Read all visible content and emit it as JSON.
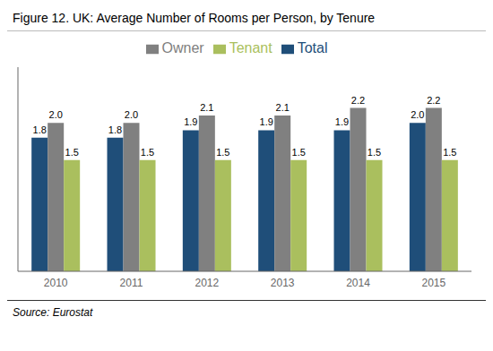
{
  "chart_data": {
    "type": "bar",
    "title": "Figure 12. UK: Average Number of Rooms per Person, by Tenure",
    "annotations": [
      "Source: Eurostat"
    ],
    "categories": [
      "2010",
      "2011",
      "2012",
      "2013",
      "2014",
      "2015"
    ],
    "series": [
      {
        "name": "Total",
        "color": "#1f4e79",
        "values": [
          1.8,
          1.8,
          1.9,
          1.9,
          1.9,
          2.0
        ],
        "value_labels": [
          "1.8",
          "1.8",
          "1.9",
          "1.9",
          "1.9",
          "2.0"
        ]
      },
      {
        "name": "Owner",
        "color": "#808080",
        "values": [
          2.0,
          2.0,
          2.1,
          2.1,
          2.2,
          2.2
        ],
        "value_labels": [
          "2.0",
          "2.0",
          "2.1",
          "2.1",
          "2.2",
          "2.2"
        ]
      },
      {
        "name": "Tenant",
        "color": "#aabf5e",
        "values": [
          1.5,
          1.5,
          1.5,
          1.5,
          1.5,
          1.5
        ],
        "value_labels": [
          "1.5",
          "1.5",
          "1.5",
          "1.5",
          "1.5",
          "1.5"
        ]
      }
    ],
    "ylim": [
      0,
      2.75
    ],
    "yticks": [],
    "grid": false,
    "legend": "top",
    "data_labels": true,
    "tick_labels": "x"
  }
}
